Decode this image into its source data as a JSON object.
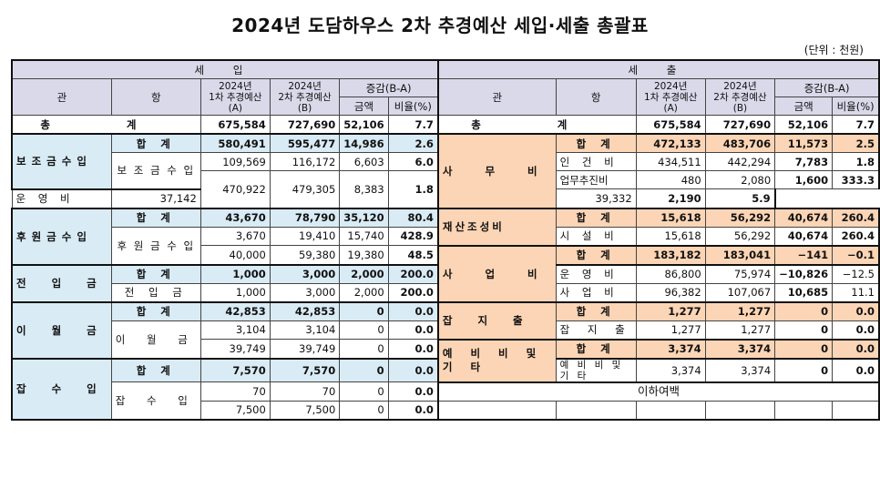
{
  "title": "2024년 도담하우스 2차 추경예산 세입·세출 총괄표",
  "unit": "(단위 : 천원)",
  "headers": {
    "income": "세 입",
    "expense": "세 출",
    "gwan": "관",
    "hang": "항",
    "col_a_1": "2024년",
    "col_a_2": "1차 추경예산(A)",
    "col_b_1": "2024년",
    "col_b_2": "2차 추경예산(B)",
    "diff": "증감(B-A)",
    "amount": "금액",
    "ratio": "비율(%)"
  },
  "total": {
    "label": "총 계",
    "income": {
      "a": "675,584",
      "b": "727,690",
      "d": "52,106",
      "r": "7.7"
    },
    "expense": {
      "a": "675,584",
      "b": "727,690",
      "d": "52,106",
      "r": "7.7"
    }
  },
  "subtotal_label": "합 계",
  "rows": [
    {
      "a": "580,491",
      "b": "595,477",
      "d": "14,986",
      "r": "2.6"
    },
    {
      "a": "109,569",
      "b": "116,172",
      "d": "6,603",
      "r": "6.0"
    },
    {
      "a": "470,922",
      "b": "479,305",
      "d": "8,383",
      "r": "1.8"
    },
    {
      "a": "43,670",
      "b": "78,790",
      "d": "35,120",
      "r": "80.4"
    },
    {
      "a": "3,670",
      "b": "19,410",
      "d": "15,740",
      "r": "428.9"
    },
    {
      "a": "40,000",
      "b": "59,380",
      "d": "19,380",
      "r": "48.5"
    },
    {
      "a": "1,000",
      "b": "3,000",
      "d": "2,000",
      "r": "200.0"
    },
    {
      "a": "1,000",
      "b": "3,000",
      "d": "2,000",
      "r": "200.0"
    },
    {
      "a": "42,853",
      "b": "42,853",
      "d": "0",
      "r": "0.0"
    },
    {
      "a": "3,104",
      "b": "3,104",
      "d": "0",
      "r": "0.0"
    },
    {
      "a": "39,749",
      "b": "39,749",
      "d": "0",
      "r": "0.0"
    },
    {
      "a": "7,570",
      "b": "7,570",
      "d": "0",
      "r": "0.0"
    },
    {
      "a": "70",
      "b": "70",
      "d": "0",
      "r": "0.0"
    },
    {
      "a": "7,500",
      "b": "7,500",
      "d": "0",
      "r": "0.0"
    }
  ],
  "income_gwan": [
    "보조금수입",
    "후원금수입",
    "전 입 금",
    "이 월 금",
    "잡 수 입"
  ],
  "income_hang": [
    "보 조 금 수 입",
    "후 원 금 수 입",
    "전 입 금",
    "이 월 금",
    "잡 수 입"
  ],
  "expense_rows": [
    {
      "hang": "합 계",
      "a": "472,133",
      "b": "483,706",
      "d": "11,573",
      "r": "2.5"
    },
    {
      "hang": "인 건 비",
      "a": "434,511",
      "b": "442,294",
      "d": "7,783",
      "r": "1.8"
    },
    {
      "hang": "업무추진비",
      "a": "480",
      "b": "2,080",
      "d": "1,600",
      "r": "333.3"
    },
    {
      "hang": "운 영 비",
      "a": "37,142",
      "b": "39,332",
      "d": "2,190",
      "r": "5.9"
    },
    {
      "hang": "합 계",
      "a": "15,618",
      "b": "56,292",
      "d": "40,674",
      "r": "260.4"
    },
    {
      "hang": "시 설 비",
      "a": "15,618",
      "b": "56,292",
      "d": "40,674",
      "r": "260.4"
    },
    {
      "hang": "합 계",
      "a": "183,182",
      "b": "183,041",
      "d": "−141",
      "r": "−0.1"
    },
    {
      "hang": "운 영 비",
      "a": "86,800",
      "b": "75,974",
      "d": "−10,826",
      "r": "−12.5"
    },
    {
      "hang": "사 업 비",
      "a": "96,382",
      "b": "107,067",
      "d": "10,685",
      "r": "11.1"
    },
    {
      "hang": "합 계",
      "a": "1,277",
      "b": "1,277",
      "d": "0",
      "r": "0.0"
    },
    {
      "hang": "잡 지 출",
      "a": "1,277",
      "b": "1,277",
      "d": "0",
      "r": "0.0"
    },
    {
      "hang": "합 계",
      "a": "3,374",
      "b": "3,374",
      "d": "0",
      "r": "0.0"
    },
    {
      "hang": "예 비 비 및 기 타",
      "a": "3,374",
      "b": "3,374",
      "d": "0",
      "r": "0.0"
    }
  ],
  "expense_gwan": [
    "사 무 비",
    "재산조성비",
    "사 업 비",
    "잡 지 출",
    "예 비 비 및 기 타"
  ],
  "blank_note": "이하여백"
}
